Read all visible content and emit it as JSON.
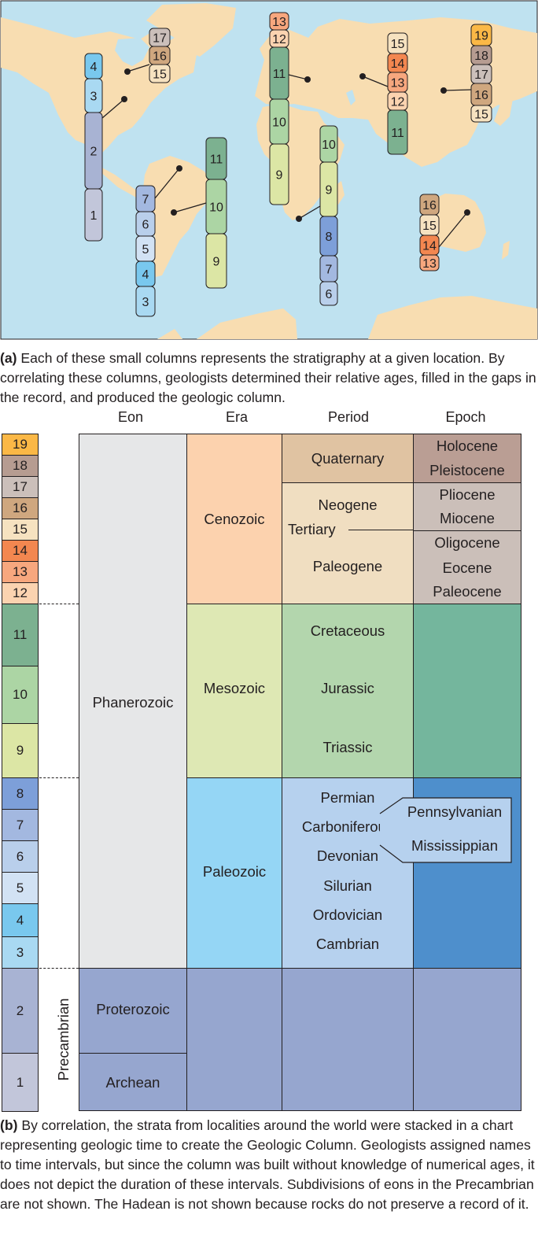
{
  "colors": {
    "ocean": "#bfe2f0",
    "land": "#f8ddb1",
    "col": {
      "1": "#c2c6da",
      "2": "#a8b3d3",
      "3": "#a9d9f2",
      "4": "#79c8ee",
      "5": "#d2e2f4",
      "6": "#b9cfeb",
      "7": "#a3b8e0",
      "8": "#7d9fd9",
      "9": "#dce6a5",
      "10": "#acd5a4",
      "11": "#7cb190",
      "12": "#fbd3b0",
      "13": "#f7a77e",
      "14": "#f38750",
      "15": "#f6e2c0",
      "16": "#cfa77f",
      "17": "#cbbfba",
      "18": "#b69c91",
      "19": "#fbb846"
    },
    "eon_phan": "#e6e7e8",
    "cenozoic": "#fcd2ae",
    "mesozoic": "#dee8b4",
    "paleozoic": "#95d6f5",
    "precambrian": "#96a6cf",
    "quaternary": "#e0c3a2",
    "tertiary": "#f0dec1",
    "mesozoic_periods": "#b3d6ad",
    "paleozoic_periods": "#b6d1ee",
    "holocene": "#ba9e94",
    "tertiary_epochs": "#cbbfb9",
    "meso_epoch": "#74b69d",
    "paleo_epoch": "#4e8fcc"
  },
  "map": {
    "columns": [
      {
        "id": "north-america-west",
        "labels": [
          "4",
          "3",
          "2",
          "1"
        ]
      },
      {
        "id": "north-america-east",
        "labels": [
          "17",
          "16",
          "15"
        ]
      },
      {
        "id": "south-america-west",
        "labels": [
          "7",
          "6",
          "5",
          "4",
          "3"
        ]
      },
      {
        "id": "south-america-east",
        "labels": [
          "11",
          "10",
          "9"
        ]
      },
      {
        "id": "europe",
        "labels": [
          "13",
          "12",
          "11",
          "10",
          "9"
        ]
      },
      {
        "id": "africa",
        "labels": [
          "10",
          "9",
          "8",
          "7",
          "6"
        ]
      },
      {
        "id": "central-asia",
        "labels": [
          "15",
          "14",
          "13",
          "12",
          "11"
        ]
      },
      {
        "id": "siberia",
        "labels": [
          "19",
          "18",
          "17",
          "16",
          "15"
        ]
      },
      {
        "id": "australia",
        "labels": [
          "16",
          "15",
          "14",
          "13"
        ]
      }
    ]
  },
  "caption_a": {
    "lead": "(a)",
    "text": " Each of these small columns represents the stratigraphy at a given location. By correlating these columns, geologists determined their relative ages, filled in the gaps in the record, and produced the geologic column."
  },
  "headers": {
    "eon": "Eon",
    "era": "Era",
    "period": "Period",
    "epoch": "Epoch"
  },
  "strata_column": [
    "19",
    "18",
    "17",
    "16",
    "15",
    "14",
    "13",
    "12",
    "11",
    "10",
    "9",
    "8",
    "7",
    "6",
    "5",
    "4",
    "3",
    "2",
    "1"
  ],
  "eons": {
    "phanerozoic": "Phanerozoic",
    "precambrian": "Precambrian",
    "proterozoic": "Proterozoic",
    "archean": "Archean"
  },
  "eras": {
    "cenozoic": "Cenozoic",
    "mesozoic": "Mesozoic",
    "paleozoic": "Paleozoic"
  },
  "periods": {
    "quaternary": "Quaternary",
    "neogene": "Neogene",
    "tertiary": "Tertiary",
    "paleogene": "Paleogene",
    "cretaceous": "Cretaceous",
    "jurassic": "Jurassic",
    "triassic": "Triassic",
    "permian": "Permian",
    "carboniferous": "Carboniferous",
    "devonian": "Devonian",
    "silurian": "Silurian",
    "ordovician": "Ordovician",
    "cambrian": "Cambrian",
    "pennsylvanian": "Pennsylvanian",
    "mississippian": "Mississippian"
  },
  "epochs": {
    "holocene": "Holocene",
    "pleistocene": "Pleistocene",
    "pliocene": "Pliocene",
    "miocene": "Miocene",
    "oligocene": "Oligocene",
    "eocene": "Eocene",
    "paleocene": "Paleocene"
  },
  "caption_b": {
    "lead": "(b)",
    "text": " By correlation, the strata from localities around the world were stacked in a chart representing geologic time to create the Geologic Column. Geologists assigned names to time intervals, but since the column was built without knowledge of numerical ages, it does not depict the duration of these intervals. Subdivisions of eons in the Precambrian are not shown. The Hadean is not shown because rocks do not preserve a record of it."
  }
}
